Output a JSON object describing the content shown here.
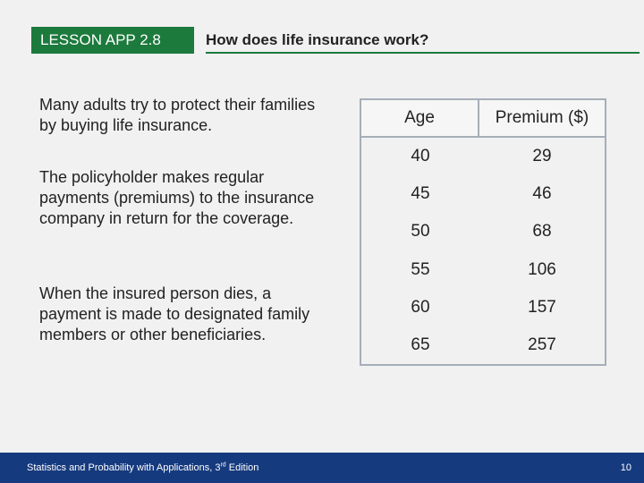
{
  "header": {
    "lesson_label": "LESSON APP 2.8",
    "title": "How does life insurance work?"
  },
  "paragraphs": {
    "p1": "Many adults try to protect their families by buying life insurance.",
    "p2": "The policyholder makes regular payments (premiums) to the insurance company in return for the coverage.",
    "p3": "When the insured person dies, a payment is made to designated family members or other beneficiaries."
  },
  "table": {
    "headers": [
      "Age",
      "Premium ($)"
    ],
    "rows": [
      [
        "40",
        "29"
      ],
      [
        "45",
        "46"
      ],
      [
        "50",
        "68"
      ],
      [
        "55",
        "106"
      ],
      [
        "60",
        "157"
      ],
      [
        "65",
        "257"
      ]
    ]
  },
  "footer": {
    "text_prefix": "Statistics and Probability with Applications, 3",
    "text_sup": "rd",
    "text_suffix": " Edition",
    "page_number": "10"
  },
  "colors": {
    "accent_green": "#1c7a3c",
    "footer_blue": "#163a7e",
    "table_border": "#a6aeb8",
    "background": "#f1f1f1"
  }
}
